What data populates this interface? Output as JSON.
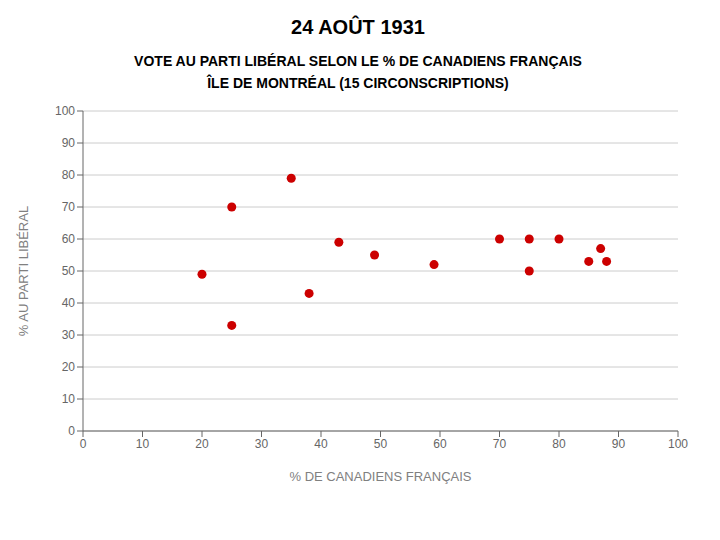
{
  "chart_data": {
    "type": "scatter",
    "title": "24 AOÛT 1931",
    "subtitle": [
      "VOTE AU PARTI LIBÉRAL SELON LE % DE CANADIENS FRANÇAIS",
      "ÎLE DE MONTRÉAL (15 CIRCONSCRIPTIONS)"
    ],
    "xlabel": "% DE CANADIENS FRANÇAIS",
    "ylabel": "% AU PARTI LIBÉRAL",
    "x": [
      20,
      25,
      25,
      35,
      38,
      43,
      49,
      59,
      70,
      75,
      75,
      80,
      85,
      87,
      88
    ],
    "values": [
      49,
      70,
      33,
      79,
      43,
      59,
      55,
      52,
      60,
      60,
      50,
      60,
      53,
      57,
      53
    ],
    "color": "#cc0000",
    "xlim": [
      0,
      100
    ],
    "ylim": [
      0,
      100
    ],
    "xticks": [
      0,
      10,
      20,
      30,
      40,
      50,
      60,
      70,
      80,
      90,
      100
    ],
    "yticks": [
      0,
      10,
      20,
      30,
      40,
      50,
      60,
      70,
      80,
      90,
      100
    ],
    "grid": "y"
  }
}
